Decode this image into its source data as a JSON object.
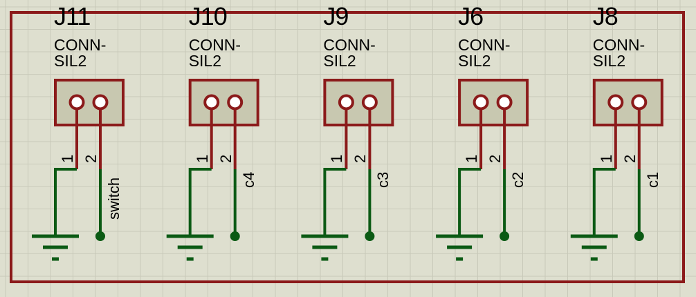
{
  "colors": {
    "background": "#dedfcf",
    "grid": "#c8c9b9",
    "wire": "#8b1a1a",
    "ground": "#0b5a14",
    "body_fill": "#c8c8b0"
  },
  "connectors": [
    {
      "ref": "J11",
      "value": "CONN-SIL2",
      "pin1": "1",
      "pin2": "2",
      "net": "switch"
    },
    {
      "ref": "J10",
      "value": "CONN-SIL2",
      "pin1": "1",
      "pin2": "2",
      "net": "c4"
    },
    {
      "ref": "J9",
      "value": "CONN-SIL2",
      "pin1": "1",
      "pin2": "2",
      "net": "c3"
    },
    {
      "ref": "J6",
      "value": "CONN-SIL2",
      "pin1": "1",
      "pin2": "2",
      "net": "c2"
    },
    {
      "ref": "J8",
      "value": "CONN-SIL2",
      "pin1": "1",
      "pin2": "2",
      "net": "c1"
    }
  ]
}
